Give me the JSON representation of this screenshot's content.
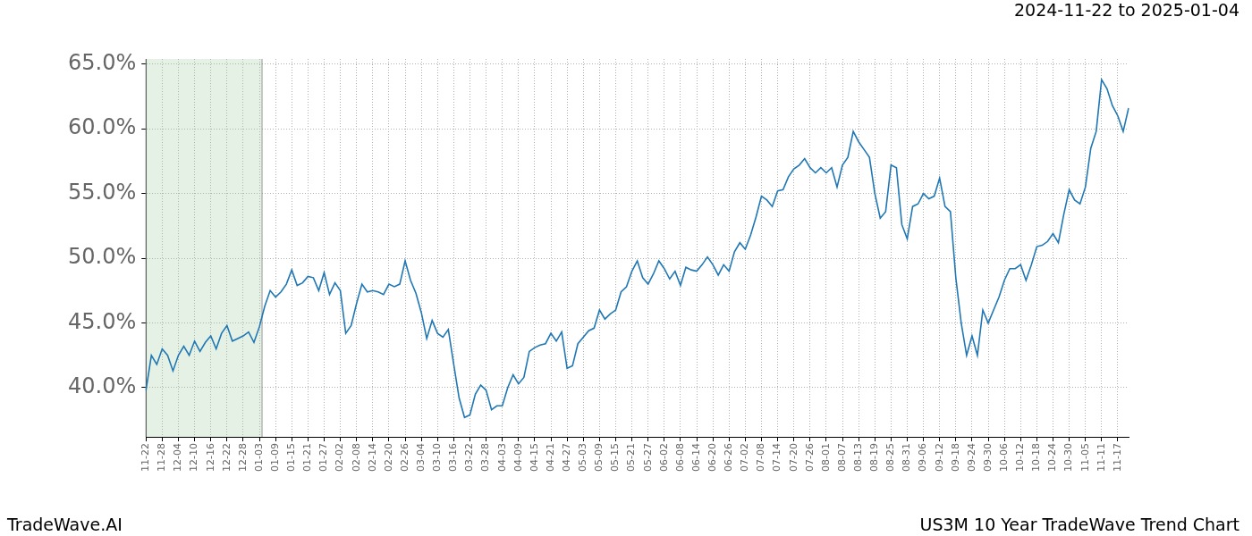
{
  "chart_data": {
    "type": "line",
    "title": "2024-11-22 to 2025-01-04",
    "source": "TradeWave.AI",
    "caption": "US3M 10 Year TradeWave Trend Chart",
    "highlight": {
      "start": "2024-11-22",
      "end": "2025-01-04"
    },
    "color": "#1f77b4",
    "grid": true,
    "ylim": [
      36.2,
      65.4
    ],
    "yticks": [
      {
        "value": 40,
        "label": "40.0%"
      },
      {
        "value": 45,
        "label": "45.0%"
      },
      {
        "value": 50,
        "label": "50.0%"
      },
      {
        "value": 55,
        "label": "55.0%"
      },
      {
        "value": 60,
        "label": "60.0%"
      },
      {
        "value": 65,
        "label": "65.0%"
      }
    ],
    "categories": [
      "11-22",
      null,
      null,
      "11-28",
      null,
      null,
      "12-04",
      null,
      null,
      "12-10",
      null,
      null,
      "12-16",
      null,
      null,
      "12-22",
      null,
      null,
      "12-28",
      null,
      null,
      "01-03",
      null,
      null,
      "01-09",
      null,
      null,
      "01-15",
      null,
      null,
      "01-21",
      null,
      null,
      "01-27",
      null,
      null,
      "02-02",
      null,
      null,
      "02-08",
      null,
      null,
      "02-14",
      null,
      null,
      "02-20",
      null,
      null,
      "02-26",
      null,
      null,
      "03-04",
      null,
      null,
      "03-10",
      null,
      null,
      "03-16",
      null,
      null,
      "03-22",
      null,
      null,
      "03-28",
      null,
      null,
      "04-03",
      null,
      null,
      "04-09",
      null,
      null,
      "04-15",
      null,
      null,
      "04-21",
      null,
      null,
      "04-27",
      null,
      null,
      "05-03",
      null,
      null,
      "05-09",
      null,
      null,
      "05-15",
      null,
      null,
      "05-21",
      null,
      null,
      "05-27",
      null,
      null,
      "06-02",
      null,
      null,
      "06-08",
      null,
      null,
      "06-14",
      null,
      null,
      "06-20",
      null,
      null,
      "06-26",
      null,
      null,
      "07-02",
      null,
      null,
      "07-08",
      null,
      null,
      "07-14",
      null,
      null,
      "07-20",
      null,
      null,
      "07-26",
      null,
      null,
      "08-01",
      null,
      null,
      "08-07",
      null,
      null,
      "08-13",
      null,
      null,
      "08-19",
      null,
      null,
      "08-25",
      null,
      null,
      "08-31",
      null,
      null,
      "09-06",
      null,
      null,
      "09-12",
      null,
      null,
      "09-18",
      null,
      null,
      "09-24",
      null,
      null,
      "09-30",
      null,
      null,
      "10-06",
      null,
      null,
      "10-12",
      null,
      null,
      "10-18",
      null,
      null,
      "10-24",
      null,
      null,
      "10-30",
      null,
      null,
      "11-05",
      null,
      null,
      "11-11",
      null,
      null,
      "11-17",
      null,
      null
    ],
    "values": [
      39.8,
      42.5,
      41.8,
      43.0,
      42.5,
      41.3,
      42.5,
      43.2,
      42.5,
      43.6,
      42.8,
      43.5,
      44.0,
      43.0,
      44.2,
      44.8,
      43.6,
      43.8,
      44.0,
      44.3,
      43.5,
      44.7,
      46.3,
      47.5,
      47.0,
      47.4,
      48.0,
      49.1,
      47.9,
      48.1,
      48.6,
      48.5,
      47.5,
      48.9,
      47.2,
      48.1,
      47.5,
      44.2,
      44.8,
      46.5,
      48.0,
      47.4,
      47.5,
      47.4,
      47.2,
      48.0,
      47.8,
      48.0,
      49.8,
      48.3,
      47.3,
      45.8,
      43.8,
      45.2,
      44.2,
      43.9,
      44.5,
      41.8,
      39.2,
      37.7,
      37.9,
      39.5,
      40.2,
      39.8,
      38.3,
      38.6,
      38.6,
      40.0,
      41.0,
      40.3,
      40.8,
      42.8,
      43.1,
      43.3,
      43.4,
      44.2,
      43.6,
      44.3,
      41.5,
      41.7,
      43.4,
      43.9,
      44.4,
      44.6,
      46.0,
      45.3,
      45.7,
      46.0,
      47.4,
      47.8,
      49.0,
      49.8,
      48.5,
      48.0,
      48.8,
      49.8,
      49.2,
      48.4,
      49.0,
      47.9,
      49.3,
      49.1,
      49.0,
      49.5,
      50.1,
      49.5,
      48.7,
      49.5,
      49.0,
      50.5,
      51.2,
      50.7,
      51.8,
      53.2,
      54.8,
      54.5,
      54.0,
      55.2,
      55.3,
      56.3,
      56.9,
      57.2,
      57.7,
      57.0,
      56.6,
      57.0,
      56.6,
      57.0,
      55.5,
      57.2,
      57.8,
      59.8,
      59.0,
      58.4,
      57.8,
      55.0,
      53.1,
      53.6,
      57.2,
      57.0,
      52.6,
      51.5,
      54.0,
      54.2,
      55.0,
      54.6,
      54.8,
      56.2,
      54.0,
      53.6,
      48.5,
      45.0,
      42.5,
      44.0,
      42.5,
      46.0,
      45.0,
      46.0,
      47.0,
      48.3,
      49.2,
      49.2,
      49.5,
      48.3,
      49.5,
      50.9,
      51.0,
      51.3,
      51.9,
      51.2,
      53.4,
      55.3,
      54.5,
      54.2,
      55.5,
      58.5,
      59.8,
      63.8,
      63.1,
      61.8,
      61.0,
      59.8,
      61.6
    ]
  }
}
